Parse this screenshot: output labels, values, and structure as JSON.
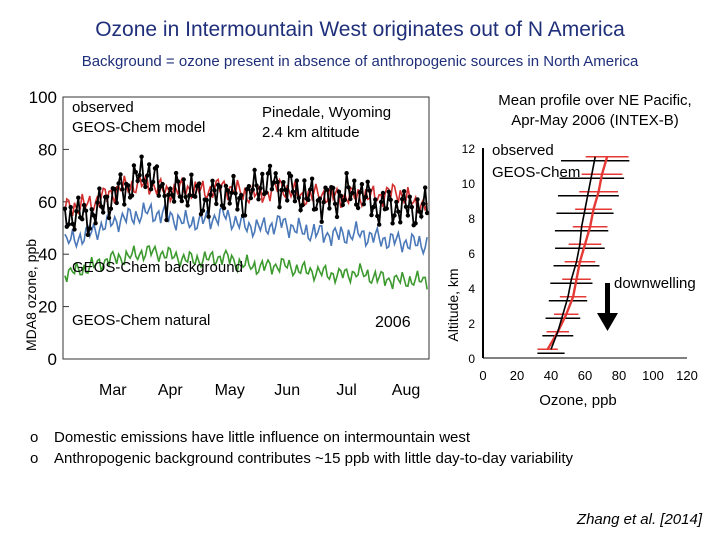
{
  "slide": {
    "title": "Ozone in Intermountain West originates out of N America",
    "subtitle": "Background = ozone present in absence of anthropogenic sources in North America",
    "bullet_marker": "o",
    "bullets": [
      "Domestic emissions have little influence on intermountain west",
      "Anthropogenic background contributes ~15 ppb with little day-to-day variability"
    ],
    "citation": "Zhang et al. [2014]"
  },
  "colors": {
    "title_text": "#1f2f7a",
    "observed": "#000000",
    "model": "#d32f2f",
    "background": "#4a78b8",
    "natural": "#3c9a2e",
    "model_profile": "#e53935",
    "observed_profile": "#000000"
  },
  "chart_data": [
    {
      "type": "line",
      "title": "",
      "xlabel": "",
      "ylabel": "MDA8 ozone, ppb",
      "ylim": [
        0,
        100
      ],
      "y_ticks": [
        0,
        20,
        40,
        60,
        80,
        100
      ],
      "x_ticks": [
        "Mar",
        "Apr",
        "May",
        "Jun",
        "Jul",
        "Aug"
      ],
      "grid": false,
      "legend_labels": {
        "observed": "observed",
        "model": "GEOS-Chem model",
        "background": "GEOS-Chem background",
        "natural": "GEOS-Chem natural"
      },
      "annotations": {
        "site": "Pinedale, Wyoming",
        "altitude": "2.4 km altitude",
        "year": "2006"
      },
      "x_range": [
        "2006-02-18",
        "2006-08-28"
      ],
      "series": [
        {
          "name": "observed",
          "x": [
            "2006-02-22",
            "2006-03-04",
            "2006-03-14",
            "2006-03-24",
            "2006-04-03",
            "2006-04-13",
            "2006-04-23",
            "2006-05-03",
            "2006-05-13",
            "2006-05-23",
            "2006-06-02",
            "2006-06-12",
            "2006-06-22",
            "2006-07-02",
            "2006-07-12",
            "2006-07-22",
            "2006-08-01",
            "2006-08-11",
            "2006-08-21"
          ],
          "y": [
            55,
            54,
            61,
            66,
            72,
            62,
            65,
            60,
            64,
            60,
            68,
            66,
            63,
            60,
            62,
            64,
            58,
            58,
            57
          ]
        },
        {
          "name": "GEOS-Chem model",
          "x": [
            "2006-02-22",
            "2006-03-04",
            "2006-03-14",
            "2006-03-24",
            "2006-04-03",
            "2006-04-13",
            "2006-04-23",
            "2006-05-03",
            "2006-05-13",
            "2006-05-23",
            "2006-06-02",
            "2006-06-12",
            "2006-06-22",
            "2006-07-02",
            "2006-07-12",
            "2006-07-22",
            "2006-08-01",
            "2006-08-11",
            "2006-08-21"
          ],
          "y": [
            58,
            59,
            63,
            66,
            67,
            64,
            65,
            64,
            66,
            63,
            63,
            66,
            62,
            63,
            62,
            62,
            62,
            64,
            59
          ]
        },
        {
          "name": "GEOS-Chem background",
          "x": [
            "2006-02-22",
            "2006-03-04",
            "2006-03-14",
            "2006-03-24",
            "2006-04-03",
            "2006-04-13",
            "2006-04-23",
            "2006-05-03",
            "2006-05-13",
            "2006-05-23",
            "2006-06-02",
            "2006-06-12",
            "2006-06-22",
            "2006-07-02",
            "2006-07-12",
            "2006-07-22",
            "2006-08-01",
            "2006-08-11",
            "2006-08-21"
          ],
          "y": [
            45,
            48,
            52,
            54,
            56,
            55,
            52,
            53,
            55,
            51,
            50,
            52,
            49,
            48,
            47,
            48,
            46,
            45,
            44
          ]
        },
        {
          "name": "GEOS-Chem natural",
          "x": [
            "2006-02-22",
            "2006-03-04",
            "2006-03-14",
            "2006-03-24",
            "2006-04-03",
            "2006-04-13",
            "2006-04-23",
            "2006-05-03",
            "2006-05-13",
            "2006-05-23",
            "2006-06-02",
            "2006-06-12",
            "2006-06-22",
            "2006-07-02",
            "2006-07-12",
            "2006-07-22",
            "2006-08-01",
            "2006-08-11",
            "2006-08-21"
          ],
          "y": [
            33,
            35,
            38,
            39,
            41,
            40,
            38,
            38,
            39,
            36,
            35,
            36,
            34,
            33,
            32,
            33,
            31,
            30,
            30
          ]
        }
      ]
    },
    {
      "type": "line",
      "title": "Mean profile over NE Pacific, Apr-May 2006 (INTEX-B)",
      "xlabel": "Ozone, ppb",
      "ylabel": "Altitude, km",
      "xlim": [
        0,
        120
      ],
      "ylim": [
        0,
        12
      ],
      "x_ticks": [
        0,
        20,
        40,
        60,
        80,
        100,
        120
      ],
      "y_ticks": [
        0,
        2,
        4,
        6,
        8,
        10,
        12
      ],
      "grid": false,
      "legend_labels": {
        "observed": "observed",
        "model": "GEOS-Chem"
      },
      "annotations": {
        "arrow_label": "downwelling"
      },
      "series": [
        {
          "name": "observed",
          "altitude": [
            0.5,
            1.5,
            2.5,
            3.5,
            4.5,
            5.5,
            6.5,
            7.5,
            8.5,
            9.5,
            10.5,
            11.5
          ],
          "ozone": [
            40,
            44,
            47,
            50,
            52,
            55,
            57,
            58,
            60,
            62,
            64,
            66
          ]
        },
        {
          "name": "GEOS-Chem",
          "altitude": [
            0.5,
            1.5,
            2.5,
            3.5,
            4.5,
            5.5,
            6.5,
            7.5,
            8.5,
            9.5,
            10.5,
            11.5
          ],
          "ozone": [
            38,
            44,
            49,
            53,
            55,
            57,
            60,
            63,
            65,
            68,
            70,
            73
          ]
        }
      ]
    }
  ]
}
